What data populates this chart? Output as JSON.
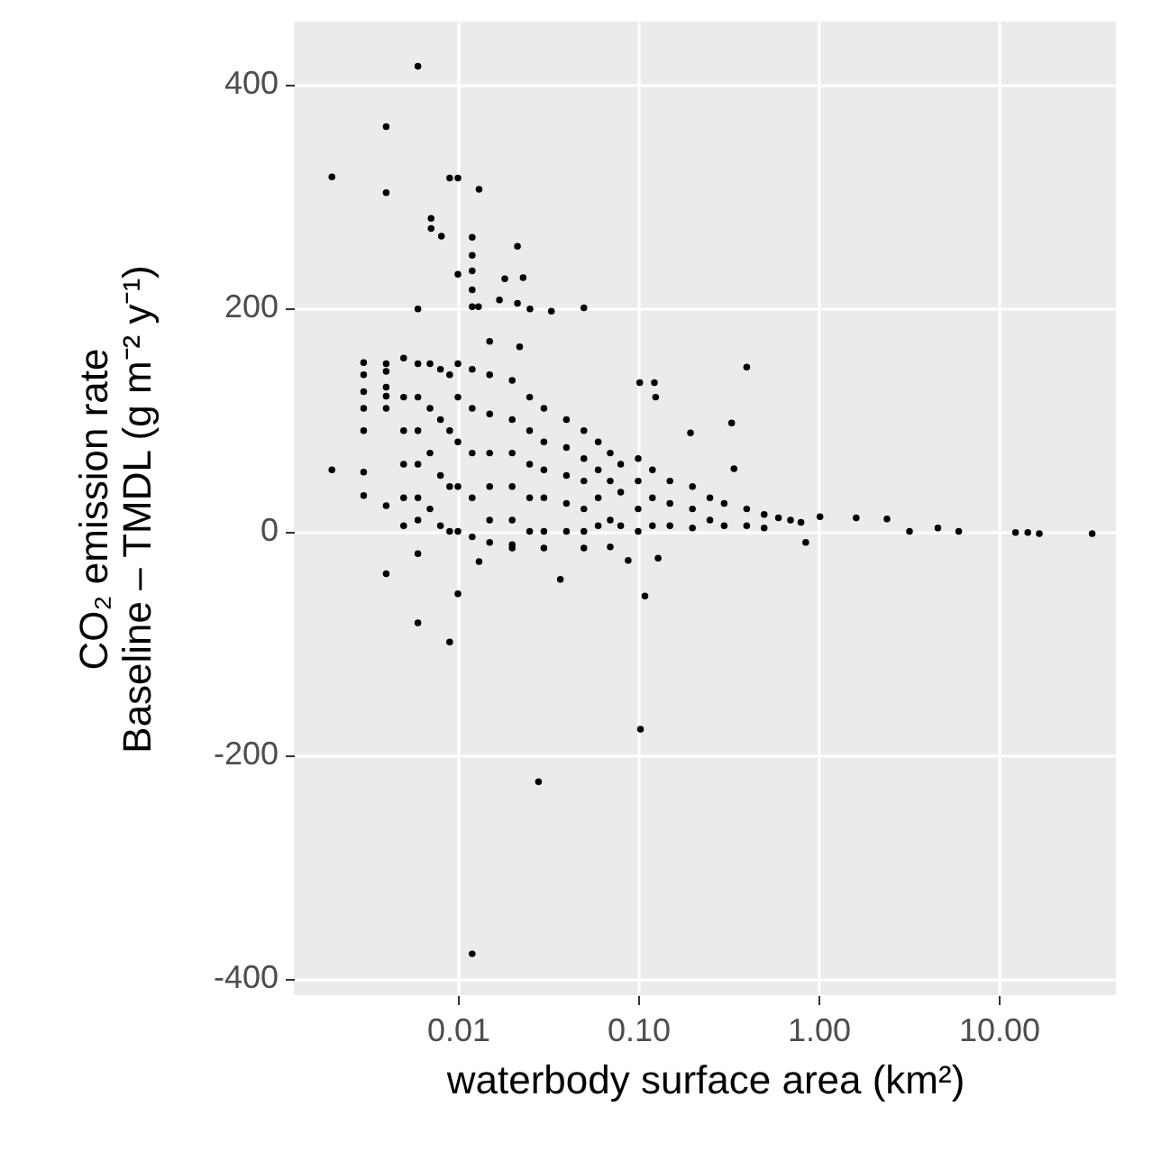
{
  "chart_data": {
    "type": "scatter",
    "xlabel": "waterbody surface area (km²)",
    "ylabel": "CO₂ emission rate\nBaseline – TMDL (g m⁻² y⁻¹)",
    "log": "x",
    "grid": true,
    "marker": "circle",
    "xlim": [
      0.00123,
      44.7
    ],
    "ylim": [
      -415,
      456
    ],
    "xticks": [
      {
        "value": 0.01,
        "label": "0.01"
      },
      {
        "value": 0.1,
        "label": "0.10"
      },
      {
        "value": 1,
        "label": "1.00"
      },
      {
        "value": 10,
        "label": "10.00"
      }
    ],
    "yticks": [
      -400,
      -200,
      0,
      200,
      400
    ],
    "series": [
      {
        "color": "#000000",
        "x": [
          0.006,
          0.004,
          0.002,
          0.004,
          0.009,
          0.01,
          0.0131,
          0.0071,
          0.0071,
          0.0081,
          0.012,
          0.0214,
          0.012,
          0.01,
          0.012,
          0.0182,
          0.023,
          0.012,
          0.006,
          0.012,
          0.013,
          0.017,
          0.0214,
          0.0251,
          0.033,
          0.05,
          0.4,
          0.33,
          0.34,
          0.102,
          0.123,
          0.125,
          0.195,
          0.003,
          0.003,
          0.003,
          0.003,
          0.003,
          0.003,
          0.003,
          0.002,
          0.004,
          0.004,
          0.004,
          0.004,
          0.004,
          0.004,
          0.004,
          0.005,
          0.005,
          0.005,
          0.005,
          0.005,
          0.005,
          0.006,
          0.006,
          0.006,
          0.006,
          0.006,
          0.006,
          0.006,
          0.01,
          0.109,
          0.006,
          0.009,
          0.103,
          0.028,
          0.012,
          0.0131,
          0.037,
          0.088,
          0.129,
          0.85,
          1.02,
          1.62,
          2.4,
          3.2,
          4.6,
          6.0,
          12.4,
          14.5,
          16.8,
          33,
          0.007,
          0.007,
          0.007,
          0.007,
          0.008,
          0.008,
          0.008,
          0.008,
          0.009,
          0.009,
          0.009,
          0.009,
          0.01,
          0.01,
          0.01,
          0.01,
          0.01,
          0.012,
          0.012,
          0.012,
          0.012,
          0.012,
          0.015,
          0.015,
          0.015,
          0.015,
          0.015,
          0.015,
          0.02,
          0.02,
          0.02,
          0.02,
          0.02,
          0.02,
          0.025,
          0.025,
          0.025,
          0.025,
          0.025,
          0.03,
          0.03,
          0.03,
          0.03,
          0.03,
          0.04,
          0.04,
          0.04,
          0.04,
          0.04,
          0.05,
          0.05,
          0.05,
          0.05,
          0.05,
          0.06,
          0.06,
          0.06,
          0.06,
          0.07,
          0.07,
          0.07,
          0.08,
          0.08,
          0.08,
          0.1,
          0.1,
          0.1,
          0.1,
          0.12,
          0.12,
          0.12,
          0.15,
          0.15,
          0.15,
          0.2,
          0.2,
          0.2,
          0.25,
          0.25,
          0.3,
          0.3,
          0.4,
          0.4,
          0.5,
          0.5,
          0.6,
          0.7,
          0.8,
          0.02,
          0.03,
          0.05,
          0.07,
          0.015,
          0.022
        ],
        "values": [
          416,
          362,
          317,
          303,
          316,
          316,
          306,
          280,
          271,
          264,
          263,
          255,
          247,
          230,
          233,
          226,
          227,
          216,
          199,
          201,
          201,
          207,
          204,
          199,
          197,
          200,
          147,
          97,
          56,
          133,
          133,
          120,
          88,
          151,
          140,
          125,
          110,
          90,
          53,
          32,
          55,
          150,
          143,
          129,
          121,
          110,
          23,
          -38,
          155,
          120,
          90,
          60,
          30,
          5,
          150,
          120,
          90,
          60,
          30,
          10,
          -20,
          -56,
          -58,
          -82,
          -99,
          -177,
          -224,
          -378,
          -27,
          -43,
          -26,
          -24,
          -10,
          13,
          12,
          11,
          0,
          3,
          0,
          -1,
          -1,
          -2,
          -2,
          150,
          110,
          70,
          20,
          145,
          100,
          50,
          5,
          140,
          90,
          40,
          0,
          150,
          120,
          80,
          40,
          0,
          145,
          110,
          70,
          30,
          -5,
          140,
          105,
          70,
          40,
          10,
          -10,
          135,
          100,
          70,
          40,
          10,
          -15,
          120,
          90,
          60,
          30,
          0,
          110,
          80,
          55,
          30,
          0,
          100,
          75,
          50,
          25,
          0,
          90,
          65,
          45,
          20,
          0,
          80,
          55,
          30,
          5,
          70,
          45,
          10,
          60,
          35,
          5,
          65,
          45,
          20,
          0,
          55,
          30,
          5,
          45,
          25,
          5,
          40,
          20,
          3,
          30,
          10,
          25,
          5,
          20,
          5,
          15,
          3,
          12,
          10,
          8,
          -12,
          -15,
          -15,
          -14,
          170,
          165
        ]
      }
    ]
  }
}
